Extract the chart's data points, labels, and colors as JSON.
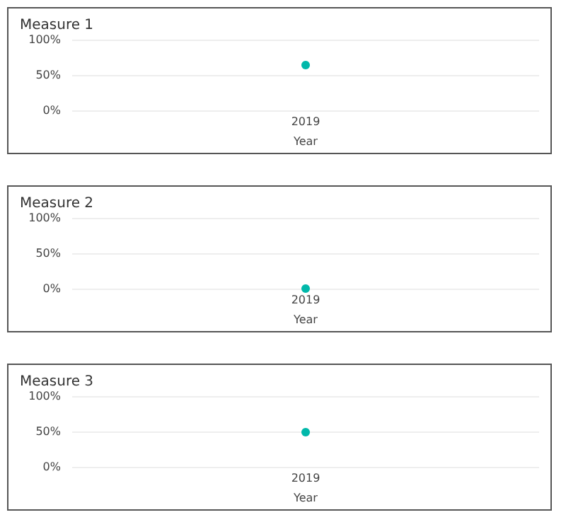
{
  "chart_data": [
    {
      "type": "line",
      "title": "Measure 1",
      "xlabel": "Year",
      "categories": [
        "2019"
      ],
      "series": [
        {
          "color": "#01b8aa",
          "values": [
            64
          ]
        }
      ],
      "ylim": [
        0,
        100
      ],
      "yticks": [
        {
          "value": 0,
          "label": "0%"
        },
        {
          "value": 50,
          "label": "50%"
        },
        {
          "value": 100,
          "label": "100%"
        }
      ],
      "grid": "y",
      "marker": "circle"
    },
    {
      "type": "line",
      "title": "Measure 2",
      "xlabel": "Year",
      "categories": [
        "2019"
      ],
      "series": [
        {
          "color": "#01b8aa",
          "values": [
            0
          ]
        }
      ],
      "ylim": [
        0,
        100
      ],
      "yticks": [
        {
          "value": 0,
          "label": "0%"
        },
        {
          "value": 50,
          "label": "50%"
        },
        {
          "value": 100,
          "label": "100%"
        }
      ],
      "grid": "y",
      "marker": "circle"
    },
    {
      "type": "line",
      "title": "Measure 3",
      "xlabel": "Year",
      "categories": [
        "2019"
      ],
      "series": [
        {
          "color": "#01b8aa",
          "values": [
            49
          ]
        }
      ],
      "ylim": [
        0,
        100
      ],
      "yticks": [
        {
          "value": 0,
          "label": "0%"
        },
        {
          "value": 50,
          "label": "50%"
        },
        {
          "value": 100,
          "label": "100%"
        }
      ],
      "grid": "y",
      "marker": "circle"
    }
  ]
}
